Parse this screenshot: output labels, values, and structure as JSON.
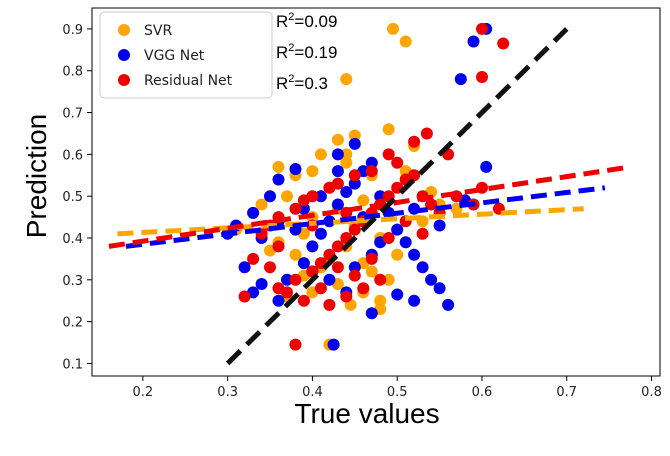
{
  "chart_data": {
    "type": "scatter",
    "xlabel": "True values",
    "ylabel": "Prediction",
    "xlim": [
      0.14,
      0.81
    ],
    "ylim": [
      0.07,
      0.95
    ],
    "xticks": [
      "0.2",
      "0.3",
      "0.4",
      "0.5",
      "0.6",
      "0.7",
      "0.8"
    ],
    "yticks": [
      "0.1",
      "0.2",
      "0.3",
      "0.4",
      "0.5",
      "0.6",
      "0.7",
      "0.8",
      "0.9"
    ],
    "grid": false,
    "legend_position": "top-left",
    "annotations": [
      {
        "prefix": "R",
        "sup": "2",
        "text": "=0.09"
      },
      {
        "prefix": "R",
        "sup": "2",
        "text": "=0.19"
      },
      {
        "prefix": "R",
        "sup": "2",
        "text": "=0.3"
      }
    ],
    "identity_line": {
      "color": "#111111",
      "points": [
        [
          0.3,
          0.1
        ],
        [
          0.7,
          0.9
        ]
      ]
    },
    "series": [
      {
        "name": "SVR",
        "color": "#FFA500",
        "fit": [
          [
            0.17,
            0.41
          ],
          [
            0.72,
            0.47
          ]
        ],
        "points": [
          [
            0.495,
            0.9
          ],
          [
            0.51,
            0.87
          ],
          [
            0.44,
            0.78
          ],
          [
            0.45,
            0.645
          ],
          [
            0.43,
            0.635
          ],
          [
            0.49,
            0.66
          ],
          [
            0.41,
            0.6
          ],
          [
            0.44,
            0.6
          ],
          [
            0.36,
            0.57
          ],
          [
            0.38,
            0.55
          ],
          [
            0.33,
            0.46
          ],
          [
            0.31,
            0.42
          ],
          [
            0.34,
            0.48
          ],
          [
            0.37,
            0.5
          ],
          [
            0.39,
            0.41
          ],
          [
            0.4,
            0.45
          ],
          [
            0.42,
            0.52
          ],
          [
            0.43,
            0.47
          ],
          [
            0.45,
            0.43
          ],
          [
            0.46,
            0.49
          ],
          [
            0.47,
            0.55
          ],
          [
            0.48,
            0.4
          ],
          [
            0.44,
            0.38
          ],
          [
            0.42,
            0.35
          ],
          [
            0.41,
            0.33
          ],
          [
            0.39,
            0.31
          ],
          [
            0.43,
            0.29
          ],
          [
            0.46,
            0.27
          ],
          [
            0.48,
            0.25
          ],
          [
            0.445,
            0.24
          ],
          [
            0.42,
            0.145
          ],
          [
            0.52,
            0.62
          ],
          [
            0.54,
            0.51
          ],
          [
            0.55,
            0.48
          ],
          [
            0.57,
            0.47
          ],
          [
            0.53,
            0.44
          ],
          [
            0.5,
            0.42
          ],
          [
            0.38,
            0.36
          ],
          [
            0.36,
            0.39
          ],
          [
            0.35,
            0.37
          ],
          [
            0.47,
            0.32
          ],
          [
            0.49,
            0.3
          ],
          [
            0.46,
            0.34
          ],
          [
            0.44,
            0.58
          ],
          [
            0.4,
            0.56
          ],
          [
            0.51,
            0.56
          ],
          [
            0.48,
            0.23
          ],
          [
            0.4,
            0.27
          ],
          [
            0.37,
            0.26
          ],
          [
            0.5,
            0.36
          ]
        ]
      },
      {
        "name": "VGG Net",
        "color": "#0000EE",
        "fit": [
          [
            0.18,
            0.38
          ],
          [
            0.745,
            0.52
          ]
        ],
        "points": [
          [
            0.605,
            0.9
          ],
          [
            0.59,
            0.87
          ],
          [
            0.575,
            0.78
          ],
          [
            0.605,
            0.57
          ],
          [
            0.45,
            0.625
          ],
          [
            0.43,
            0.6
          ],
          [
            0.38,
            0.565
          ],
          [
            0.36,
            0.54
          ],
          [
            0.35,
            0.5
          ],
          [
            0.33,
            0.46
          ],
          [
            0.31,
            0.43
          ],
          [
            0.3,
            0.41
          ],
          [
            0.32,
            0.33
          ],
          [
            0.34,
            0.29
          ],
          [
            0.33,
            0.27
          ],
          [
            0.36,
            0.25
          ],
          [
            0.37,
            0.3
          ],
          [
            0.39,
            0.34
          ],
          [
            0.4,
            0.38
          ],
          [
            0.41,
            0.41
          ],
          [
            0.42,
            0.44
          ],
          [
            0.43,
            0.48
          ],
          [
            0.44,
            0.51
          ],
          [
            0.45,
            0.53
          ],
          [
            0.46,
            0.56
          ],
          [
            0.47,
            0.58
          ],
          [
            0.48,
            0.5
          ],
          [
            0.49,
            0.46
          ],
          [
            0.5,
            0.42
          ],
          [
            0.51,
            0.39
          ],
          [
            0.52,
            0.36
          ],
          [
            0.53,
            0.33
          ],
          [
            0.54,
            0.3
          ],
          [
            0.55,
            0.28
          ],
          [
            0.56,
            0.24
          ],
          [
            0.5,
            0.265
          ],
          [
            0.52,
            0.25
          ],
          [
            0.47,
            0.22
          ],
          [
            0.425,
            0.145
          ],
          [
            0.47,
            0.36
          ],
          [
            0.45,
            0.33
          ],
          [
            0.44,
            0.27
          ],
          [
            0.42,
            0.3
          ],
          [
            0.4,
            0.32
          ],
          [
            0.38,
            0.42
          ],
          [
            0.36,
            0.44
          ],
          [
            0.34,
            0.4
          ],
          [
            0.52,
            0.47
          ],
          [
            0.55,
            0.43
          ],
          [
            0.58,
            0.49
          ],
          [
            0.43,
            0.56
          ],
          [
            0.41,
            0.5
          ],
          [
            0.46,
            0.45
          ],
          [
            0.48,
            0.39
          ],
          [
            0.39,
            0.47
          ]
        ]
      },
      {
        "name": "Residual Net",
        "color": "#EE0000",
        "fit": [
          [
            0.16,
            0.38
          ],
          [
            0.775,
            0.57
          ]
        ],
        "points": [
          [
            0.6,
            0.9
          ],
          [
            0.625,
            0.865
          ],
          [
            0.6,
            0.785
          ],
          [
            0.535,
            0.65
          ],
          [
            0.52,
            0.63
          ],
          [
            0.49,
            0.6
          ],
          [
            0.5,
            0.58
          ],
          [
            0.47,
            0.56
          ],
          [
            0.45,
            0.55
          ],
          [
            0.43,
            0.53
          ],
          [
            0.42,
            0.52
          ],
          [
            0.4,
            0.5
          ],
          [
            0.39,
            0.49
          ],
          [
            0.38,
            0.47
          ],
          [
            0.36,
            0.45
          ],
          [
            0.35,
            0.43
          ],
          [
            0.34,
            0.41
          ],
          [
            0.33,
            0.35
          ],
          [
            0.32,
            0.26
          ],
          [
            0.36,
            0.28
          ],
          [
            0.38,
            0.3
          ],
          [
            0.4,
            0.32
          ],
          [
            0.41,
            0.34
          ],
          [
            0.42,
            0.36
          ],
          [
            0.43,
            0.38
          ],
          [
            0.44,
            0.4
          ],
          [
            0.45,
            0.42
          ],
          [
            0.46,
            0.44
          ],
          [
            0.47,
            0.46
          ],
          [
            0.48,
            0.48
          ],
          [
            0.49,
            0.5
          ],
          [
            0.5,
            0.52
          ],
          [
            0.51,
            0.54
          ],
          [
            0.52,
            0.55
          ],
          [
            0.53,
            0.5
          ],
          [
            0.54,
            0.48
          ],
          [
            0.55,
            0.46
          ],
          [
            0.57,
            0.5
          ],
          [
            0.59,
            0.48
          ],
          [
            0.6,
            0.52
          ],
          [
            0.62,
            0.47
          ],
          [
            0.56,
            0.6
          ],
          [
            0.48,
            0.3
          ],
          [
            0.46,
            0.28
          ],
          [
            0.44,
            0.26
          ],
          [
            0.42,
            0.24
          ],
          [
            0.39,
            0.25
          ],
          [
            0.37,
            0.27
          ],
          [
            0.38,
            0.145
          ],
          [
            0.47,
            0.35
          ],
          [
            0.45,
            0.31
          ],
          [
            0.43,
            0.33
          ],
          [
            0.41,
            0.28
          ],
          [
            0.44,
            0.46
          ],
          [
            0.4,
            0.43
          ],
          [
            0.49,
            0.4
          ],
          [
            0.51,
            0.44
          ],
          [
            0.53,
            0.41
          ],
          [
            0.36,
            0.38
          ],
          [
            0.35,
            0.33
          ]
        ]
      }
    ]
  }
}
